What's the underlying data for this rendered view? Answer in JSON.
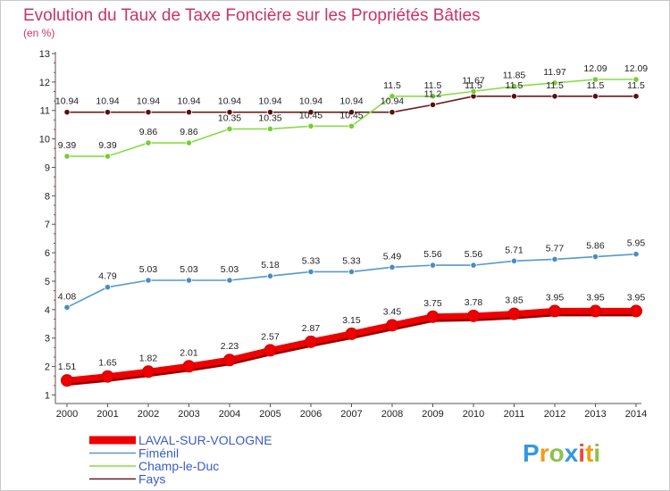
{
  "chart_data": {
    "type": "line",
    "title": "Evolution du Taux de Taxe Foncière sur les Propriétés Bâties",
    "subtitle": "(en %)",
    "xlabel": "",
    "ylabel": "",
    "x": [
      "2000",
      "2001",
      "2002",
      "2003",
      "2004",
      "2005",
      "2006",
      "2007",
      "2008",
      "2009",
      "2010",
      "2011",
      "2012",
      "2013",
      "2014"
    ],
    "y_ticks": [
      "1",
      "2",
      "3",
      "4",
      "5",
      "6",
      "7",
      "8",
      "9",
      "10",
      "11",
      "12",
      "13"
    ],
    "ylim": [
      0.7,
      13
    ],
    "grid": false,
    "legend_position": "bottom-left",
    "series": [
      {
        "name": "Fays",
        "color": "#6b1a1a",
        "marker_color": "#5a0f0f",
        "values": [
          10.94,
          10.94,
          10.94,
          10.94,
          10.94,
          10.94,
          10.94,
          10.94,
          10.94,
          11.2,
          11.5,
          11.5,
          11.5,
          11.5,
          11.5
        ],
        "labels": [
          "10.94",
          "10.94",
          "10.94",
          "10.94",
          "10.94",
          "10.94",
          "10.94",
          "10.94",
          "10.94",
          "11.2",
          "11.5",
          "11.5",
          "11.5",
          "11.5",
          "11.5"
        ]
      },
      {
        "name": "Champ-le-Duc",
        "color": "#88dd44",
        "marker_color": "#77cc33",
        "values": [
          9.39,
          9.39,
          9.86,
          9.86,
          10.35,
          10.35,
          10.45,
          10.45,
          11.5,
          11.5,
          11.67,
          11.85,
          11.97,
          12.09,
          12.09
        ],
        "labels": [
          "9.39",
          "9.39",
          "9.86",
          "9.86",
          "10.35",
          "10.35",
          "10.45",
          "10.45",
          "11.5",
          "11.5",
          "11.67",
          "11.85",
          "11.97",
          "12.09",
          "12.09"
        ]
      },
      {
        "name": "Fiménil",
        "color": "#5599cc",
        "marker_color": "#4a8cc4",
        "values": [
          4.08,
          4.79,
          5.03,
          5.03,
          5.03,
          5.18,
          5.33,
          5.33,
          5.49,
          5.56,
          5.56,
          5.71,
          5.77,
          5.86,
          5.95
        ],
        "labels": [
          "4.08",
          "4.79",
          "5.03",
          "5.03",
          "5.03",
          "5.18",
          "5.33",
          "5.33",
          "5.49",
          "5.56",
          "5.56",
          "5.71",
          "5.77",
          "5.86",
          "5.95"
        ]
      },
      {
        "name": "LAVAL-SUR-VOLOGNE",
        "color": "#ee0000",
        "marker_color": "#ee0000",
        "values": [
          1.51,
          1.65,
          1.82,
          2.01,
          2.23,
          2.57,
          2.87,
          3.15,
          3.45,
          3.75,
          3.78,
          3.85,
          3.95,
          3.95,
          3.95
        ],
        "labels": [
          "1.51",
          "1.65",
          "1.82",
          "2.01",
          "2.23",
          "2.57",
          "2.87",
          "3.15",
          "3.45",
          "3.75",
          "3.78",
          "3.85",
          "3.95",
          "3.95",
          "3.95"
        ]
      }
    ],
    "legend": [
      "LAVAL-SUR-VOLOGNE",
      "Fiménil",
      "Champ-le-Duc",
      "Fays"
    ]
  },
  "logo": {
    "letters": [
      "P",
      "r",
      "o",
      "x",
      "i",
      "t",
      "i"
    ],
    "colors": [
      "#3399dd",
      "#f39c12",
      "#8bc34a",
      "#3399dd",
      "#e74c3c",
      "#f39c12",
      "#8bc34a"
    ]
  }
}
